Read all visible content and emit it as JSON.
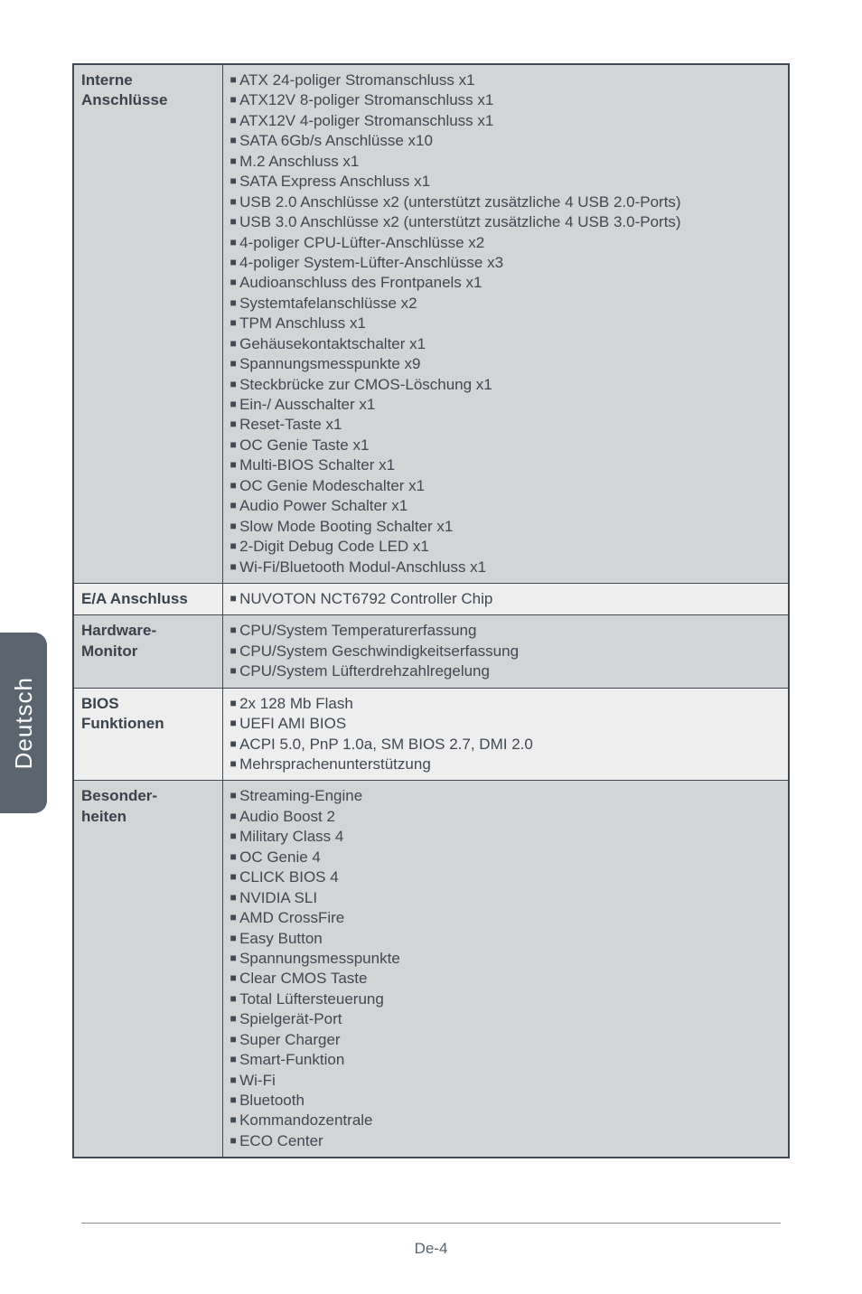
{
  "sideTab": "Deutsch",
  "rows": [
    {
      "header": "Interne Anschlüsse",
      "items": [
        "ATX 24-poliger Stromanschluss x1",
        "ATX12V 8-poliger Stromanschluss x1",
        "ATX12V 4-poliger Stromanschluss x1",
        "SATA 6Gb/s Anschlüsse x10",
        "M.2 Anschluss x1",
        "SATA Express Anschluss x1",
        "USB 2.0 Anschlüsse x2 (unterstützt zusätzliche 4 USB 2.0-Ports)",
        "USB 3.0 Anschlüsse x2 (unterstützt zusätzliche 4 USB 3.0-Ports)",
        "4-poliger CPU-Lüfter-Anschlüsse x2",
        "4-poliger System-Lüfter-Anschlüsse x3",
        "Audioanschluss des Frontpanels x1",
        "Systemtafelanschlüsse x2",
        "TPM Anschluss x1",
        "Gehäusekontaktschalter x1",
        "Spannungsmesspunkte x9",
        "Steckbrücke zur CMOS-Löschung x1",
        "Ein-/ Ausschalter x1",
        "Reset-Taste x1",
        "OC Genie Taste x1",
        "Multi-BIOS Schalter x1",
        "OC Genie Modeschalter x1",
        "Audio Power Schalter x1",
        "Slow Mode Booting Schalter x1",
        "2-Digit Debug Code LED x1",
        "Wi-Fi/Bluetooth Modul-Anschluss x1"
      ]
    },
    {
      "header": "E/A Anschluss",
      "items": [
        "NUVOTON NCT6792 Controller Chip"
      ]
    },
    {
      "header": "Hardware-Monitor",
      "items": [
        "CPU/System Temperaturerfassung",
        "CPU/System Geschwindigkeitserfassung",
        "CPU/System Lüfterdrehzahlregelung"
      ]
    },
    {
      "header": "BIOS Funktionen",
      "items": [
        "2x 128 Mb Flash",
        "UEFI AMI BIOS",
        "ACPI 5.0, PnP 1.0a, SM BIOS 2.7, DMI 2.0",
        "Mehrsprachenunterstützung"
      ]
    },
    {
      "header": "Besonder-heiten",
      "items": [
        "Streaming-Engine",
        "Audio Boost 2",
        "Military Class 4",
        "OC Genie 4",
        "CLICK BIOS 4",
        "NVIDIA SLI",
        "AMD CrossFire",
        "Easy Button",
        "Spannungsmesspunkte",
        "Clear CMOS Taste",
        "Total Lüftersteuerung",
        "Spielgerät-Port",
        "Super Charger",
        "Smart-Funktion",
        "Wi-Fi",
        "Bluetooth",
        "Kommandozentrale",
        "ECO Center"
      ]
    }
  ],
  "pageLabel": "De-4"
}
